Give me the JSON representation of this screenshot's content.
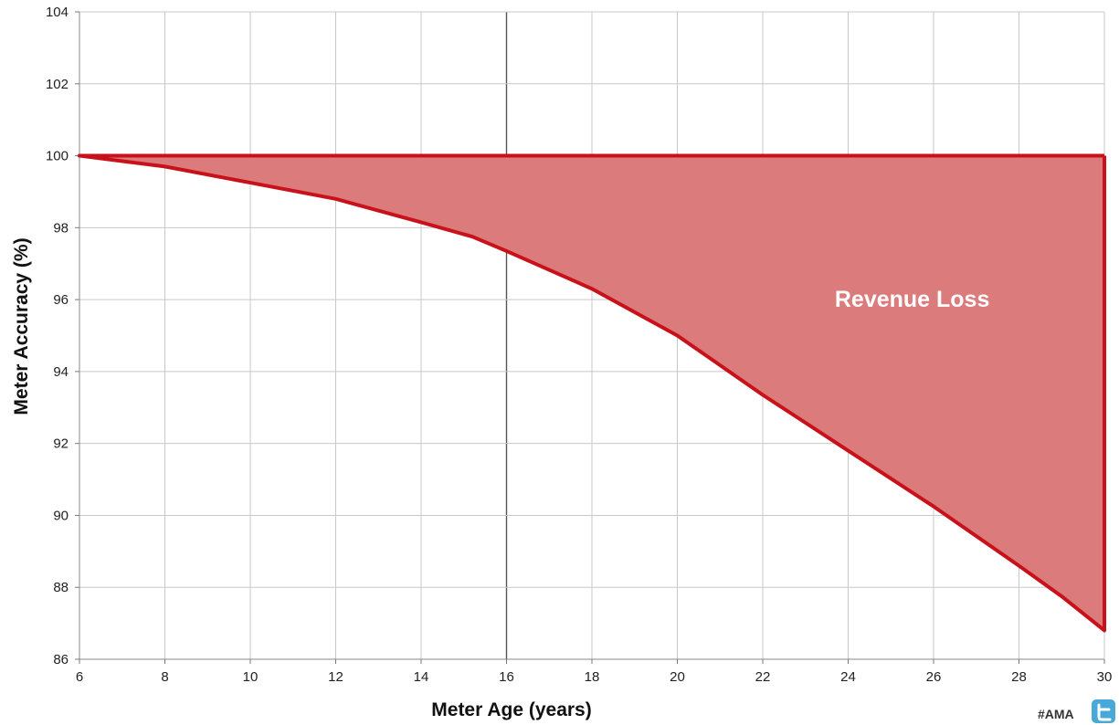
{
  "chart_data": {
    "type": "area",
    "xlabel": "Meter Age (years)",
    "ylabel": "Meter Accuracy (%)",
    "xlim": [
      6,
      30
    ],
    "ylim": [
      86,
      104
    ],
    "x_ticks": [
      6,
      8,
      10,
      12,
      14,
      16,
      18,
      20,
      22,
      24,
      26,
      28,
      30
    ],
    "y_ticks": [
      86,
      88,
      90,
      92,
      94,
      96,
      98,
      100,
      102,
      104
    ],
    "grid": true,
    "reference_line": 100,
    "highlight_vertical": 16,
    "series": [
      {
        "x": [
          6,
          8,
          10,
          12,
          14,
          15.2,
          16,
          18,
          20,
          22,
          24,
          26,
          28,
          29,
          30
        ],
        "y": [
          100,
          99.7,
          99.25,
          98.8,
          98.15,
          97.75,
          97.35,
          96.3,
          95.0,
          93.35,
          91.8,
          90.25,
          88.6,
          87.75,
          86.8
        ]
      }
    ],
    "annotation": "Revenue Loss",
    "colors": {
      "fill": "#db7b7b",
      "line": "#c8111a",
      "grid": "#c8c8c8"
    }
  },
  "footer": {
    "hashtag": "#AMA",
    "social_icon": "twitter-icon",
    "icon_color": "#48a8d8"
  }
}
